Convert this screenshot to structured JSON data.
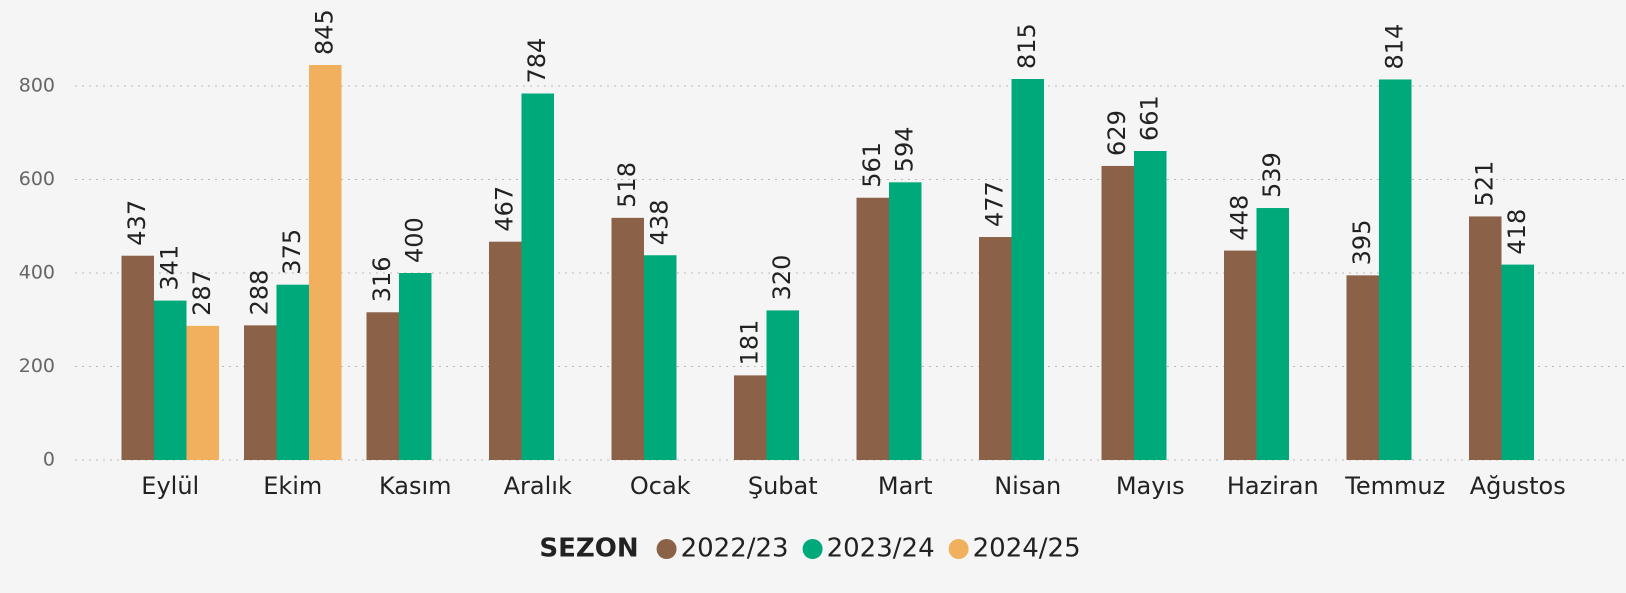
{
  "chart_data": {
    "type": "bar",
    "categories": [
      "Eylül",
      "Ekim",
      "Kasım",
      "Aralık",
      "Ocak",
      "Şubat",
      "Mart",
      "Nisan",
      "Mayıs",
      "Haziran",
      "Temmuz",
      "Ağustos"
    ],
    "series": [
      {
        "name": "2022/23",
        "color": "#8b6248",
        "values": [
          437,
          288,
          316,
          467,
          518,
          181,
          561,
          477,
          629,
          448,
          395,
          521
        ]
      },
      {
        "name": "2023/24",
        "color": "#00a97a",
        "values": [
          341,
          375,
          400,
          784,
          438,
          320,
          594,
          815,
          661,
          539,
          814,
          418
        ]
      },
      {
        "name": "2024/25",
        "color": "#f0b05e",
        "values": [
          287,
          845,
          null,
          null,
          null,
          null,
          null,
          null,
          null,
          null,
          null,
          null
        ]
      }
    ],
    "legend_title": "SEZON",
    "ylim": [
      0,
      984
    ],
    "yticks": [
      0,
      200,
      400,
      600,
      800
    ],
    "grid": true,
    "legend": "bottom"
  }
}
